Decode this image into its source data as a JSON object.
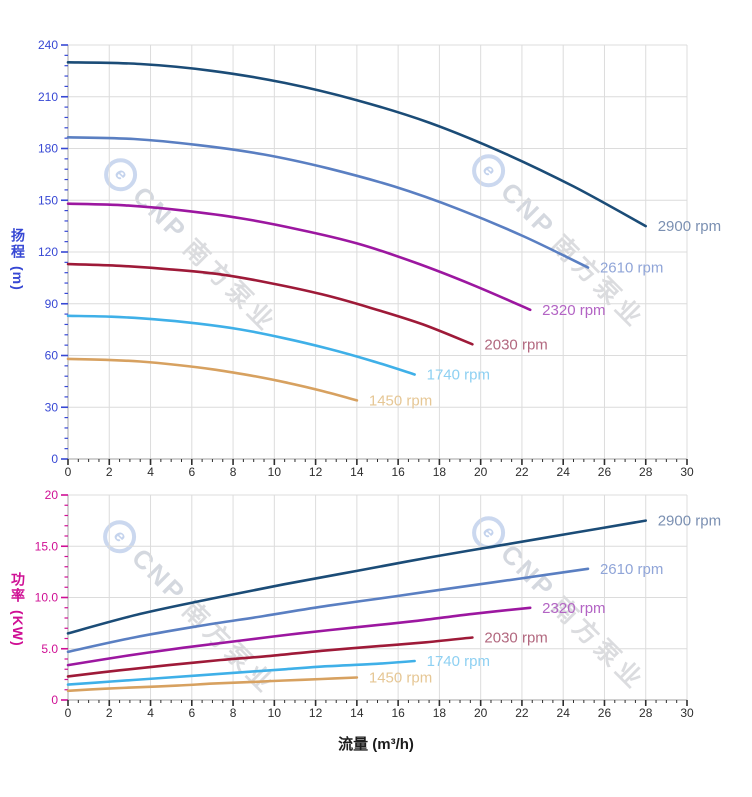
{
  "watermark": {
    "logo_glyph": "e",
    "brand": "CNP",
    "brand_cjk": "南方泵业"
  },
  "palette": {
    "grid": "#dcdcdc",
    "axis_line": "#b5b5b5",
    "x_tick_color": "#2e2e2e",
    "head_axis_color": "#3748d4",
    "power_axis_color": "#cf0f94"
  },
  "chart_data": [
    {
      "type": "line",
      "name": "head-vs-flow",
      "title": "",
      "xlabel": "",
      "ylabel": "扬程 (m)",
      "y_title": {
        "text": "扬程",
        "unit": "(m)"
      },
      "x": {
        "min": 0,
        "max": 30,
        "major_step": 2,
        "minor_step": 0.5,
        "tick_labels": [
          "0",
          "2",
          "4",
          "6",
          "8",
          "10",
          "12",
          "14",
          "16",
          "18",
          "20",
          "22",
          "24",
          "26",
          "28",
          "30"
        ]
      },
      "y": {
        "min": 0,
        "max": 240,
        "major_step": 30,
        "minor_step": 6,
        "tick_labels": [
          "0",
          "30",
          "60",
          "90",
          "120",
          "150",
          "180",
          "210",
          "240"
        ]
      },
      "grid": true,
      "legend_position": "curve-end-labels",
      "series": [
        {
          "name": "2900 rpm",
          "color": "#1b4c77",
          "label_color": "#7b90b2",
          "points": [
            [
              0,
              230
            ],
            [
              3.5,
              229
            ],
            [
              7,
              225
            ],
            [
              10.5,
              218
            ],
            [
              14,
              208
            ],
            [
              17.5,
              195
            ],
            [
              21,
              178
            ],
            [
              24.5,
              158
            ],
            [
              28,
              135
            ]
          ]
        },
        {
          "name": "2610 rpm",
          "color": "#5a7fc2",
          "label_color": "#90a5d8",
          "points": [
            [
              0,
              186.5
            ],
            [
              3.2,
              185.5
            ],
            [
              6.3,
              182
            ],
            [
              9.5,
              176.5
            ],
            [
              12.6,
              168.5
            ],
            [
              15.8,
              158
            ],
            [
              18.9,
              145
            ],
            [
              22.1,
              129
            ],
            [
              25.2,
              111
            ]
          ]
        },
        {
          "name": "2320 rpm",
          "color": "#9c17a0",
          "label_color": "#b364c4",
          "points": [
            [
              0,
              148
            ],
            [
              2.8,
              147
            ],
            [
              5.6,
              144
            ],
            [
              8.4,
              139.5
            ],
            [
              11.2,
              133
            ],
            [
              14,
              125
            ],
            [
              16.8,
              114
            ],
            [
              19.6,
              101
            ],
            [
              22.4,
              86.5
            ]
          ]
        },
        {
          "name": "2030 rpm",
          "color": "#9e1a38",
          "label_color": "#b2687f",
          "points": [
            [
              0,
              113
            ],
            [
              2.5,
              112
            ],
            [
              4.9,
              110
            ],
            [
              7.4,
              107
            ],
            [
              9.8,
              102
            ],
            [
              12.3,
              95.5
            ],
            [
              14.7,
              87.5
            ],
            [
              17.2,
              78
            ],
            [
              19.6,
              66.5
            ]
          ]
        },
        {
          "name": "1740 rpm",
          "color": "#3fb0e8",
          "label_color": "#8ed0f2",
          "points": [
            [
              0,
              83
            ],
            [
              2.1,
              82.5
            ],
            [
              4.2,
              81
            ],
            [
              6.3,
              78.5
            ],
            [
              8.4,
              75
            ],
            [
              10.5,
              70
            ],
            [
              12.6,
              64
            ],
            [
              14.7,
              57
            ],
            [
              16.8,
              49
            ]
          ]
        },
        {
          "name": "1450 rpm",
          "color": "#d7a160",
          "label_color": "#e6c795",
          "points": [
            [
              0,
              58
            ],
            [
              1.8,
              57.5
            ],
            [
              3.5,
              56.5
            ],
            [
              5.3,
              54.5
            ],
            [
              7,
              52
            ],
            [
              8.8,
              48.5
            ],
            [
              10.5,
              44.5
            ],
            [
              12.3,
              39.5
            ],
            [
              14,
              34
            ]
          ]
        }
      ]
    },
    {
      "type": "line",
      "name": "power-vs-flow",
      "title": "",
      "xlabel": "流量 (m³/h)",
      "ylabel": "功率 (KW)",
      "x_title": {
        "text": "流量 (m³/h)"
      },
      "y_title": {
        "text": "功率",
        "unit": "(KW)"
      },
      "x": {
        "min": 0,
        "max": 30,
        "major_step": 2,
        "minor_step": 0.5,
        "tick_labels": [
          "0",
          "2",
          "4",
          "6",
          "8",
          "10",
          "12",
          "14",
          "16",
          "18",
          "20",
          "22",
          "24",
          "26",
          "28",
          "30"
        ]
      },
      "y": {
        "min": 0,
        "max": 20,
        "major_step": 5,
        "minor_step": 1,
        "tick_labels": [
          "0",
          "5.0",
          "10.0",
          "15.0",
          "20"
        ]
      },
      "grid": true,
      "legend_position": "curve-end-labels",
      "series": [
        {
          "name": "2900 rpm",
          "color": "#1b4c77",
          "label_color": "#7b90b2",
          "points": [
            [
              0,
              6.5
            ],
            [
              3.5,
              8.4
            ],
            [
              7,
              9.9
            ],
            [
              10.5,
              11.3
            ],
            [
              14,
              12.6
            ],
            [
              17.5,
              13.9
            ],
            [
              21,
              15.1
            ],
            [
              24.5,
              16.3
            ],
            [
              28,
              17.5
            ]
          ]
        },
        {
          "name": "2610 rpm",
          "color": "#5a7fc2",
          "label_color": "#90a5d8",
          "points": [
            [
              0,
              4.7
            ],
            [
              3.2,
              6.1
            ],
            [
              6.3,
              7.2
            ],
            [
              9.5,
              8.2
            ],
            [
              12.6,
              9.2
            ],
            [
              15.8,
              10.1
            ],
            [
              18.9,
              11.0
            ],
            [
              22.1,
              11.9
            ],
            [
              25.2,
              12.8
            ]
          ]
        },
        {
          "name": "2320 rpm",
          "color": "#9c17a0",
          "label_color": "#b364c4",
          "points": [
            [
              0,
              3.4
            ],
            [
              2.8,
              4.3
            ],
            [
              5.6,
              5.1
            ],
            [
              8.4,
              5.8
            ],
            [
              11.2,
              6.5
            ],
            [
              14,
              7.1
            ],
            [
              16.8,
              7.7
            ],
            [
              19.6,
              8.4
            ],
            [
              22.4,
              9.0
            ]
          ]
        },
        {
          "name": "2030 rpm",
          "color": "#9e1a38",
          "label_color": "#b2687f",
          "points": [
            [
              0,
              2.3
            ],
            [
              2.5,
              2.9
            ],
            [
              4.9,
              3.4
            ],
            [
              7.4,
              3.9
            ],
            [
              9.8,
              4.3
            ],
            [
              12.3,
              4.8
            ],
            [
              14.7,
              5.2
            ],
            [
              17.2,
              5.6
            ],
            [
              19.6,
              6.1
            ]
          ]
        },
        {
          "name": "1740 rpm",
          "color": "#3fb0e8",
          "label_color": "#8ed0f2",
          "points": [
            [
              0,
              1.5
            ],
            [
              2.1,
              1.8
            ],
            [
              4.2,
              2.1
            ],
            [
              6.3,
              2.4
            ],
            [
              8.4,
              2.7
            ],
            [
              10.5,
              3.0
            ],
            [
              12.6,
              3.3
            ],
            [
              14.7,
              3.5
            ],
            [
              16.8,
              3.8
            ]
          ]
        },
        {
          "name": "1450 rpm",
          "color": "#d7a160",
          "label_color": "#e6c795",
          "points": [
            [
              0,
              0.9
            ],
            [
              1.8,
              1.1
            ],
            [
              3.5,
              1.25
            ],
            [
              5.3,
              1.4
            ],
            [
              7,
              1.6
            ],
            [
              8.8,
              1.75
            ],
            [
              10.5,
              1.9
            ],
            [
              12.3,
              2.05
            ],
            [
              14,
              2.2
            ]
          ]
        }
      ]
    }
  ]
}
